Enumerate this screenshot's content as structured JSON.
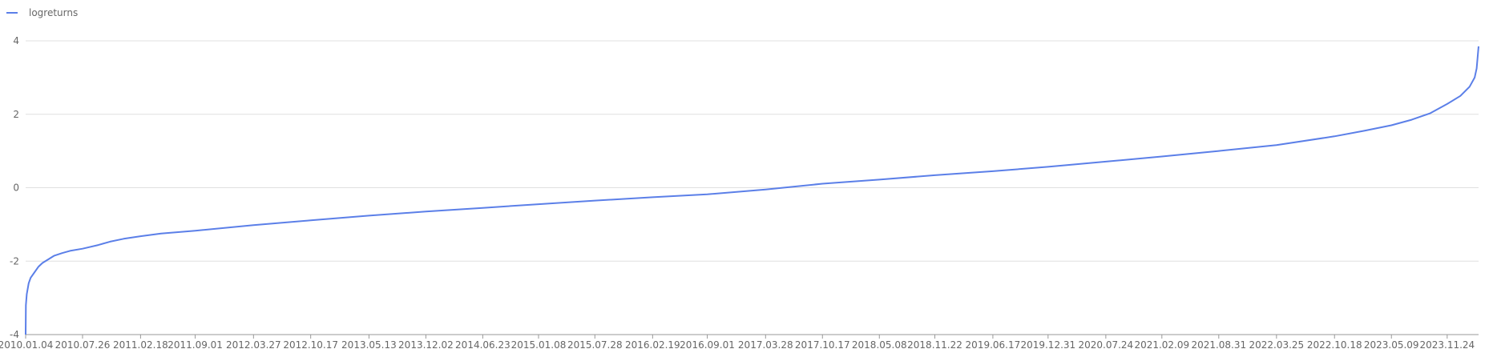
{
  "chart_data": {
    "type": "line",
    "title": "",
    "xlabel": "",
    "ylabel": "",
    "legend": {
      "position": "top-left",
      "entries": [
        "logreturns"
      ]
    },
    "grid": true,
    "ylim": [
      -4,
      4
    ],
    "yticks": [
      "4",
      "2",
      "0",
      "-2",
      "-4"
    ],
    "xlim": [
      "2010.01.04",
      "2024.03.15"
    ],
    "xticks": [
      "2010.01.04",
      "2010.07.26",
      "2011.02.18",
      "2011.09.01",
      "2012.03.27",
      "2012.10.17",
      "2013.05.13",
      "2013.12.02",
      "2014.06.23",
      "2015.01.08",
      "2015.07.28",
      "2016.02.19",
      "2016.09.01",
      "2017.03.28",
      "2017.10.17",
      "2018.05.08",
      "2018.11.22",
      "2019.06.17",
      "2019.12.31",
      "2020.07.24",
      "2021.02.09",
      "2021.08.31",
      "2022.03.25",
      "2022.10.18",
      "2023.05.09",
      "2023.11.24"
    ],
    "series_color": "#5b7fe8",
    "series": [
      {
        "name": "logreturns",
        "x": [
          "2010.01.04",
          "2010.01.05",
          "2010.01.08",
          "2010.01.15",
          "2010.01.22",
          "2010.02.05",
          "2010.02.19",
          "2010.03.05",
          "2010.03.26",
          "2010.04.16",
          "2010.05.14",
          "2010.06.11",
          "2010.07.26",
          "2010.09.20",
          "2010.11.01",
          "2010.12.20",
          "2011.02.18",
          "2011.05.02",
          "2011.09.01",
          "2012.03.27",
          "2012.10.17",
          "2013.05.13",
          "2013.12.02",
          "2014.06.23",
          "2015.01.08",
          "2015.07.28",
          "2016.02.19",
          "2016.09.01",
          "2017.03.28",
          "2017.10.17",
          "2018.05.08",
          "2018.11.22",
          "2019.06.17",
          "2019.12.31",
          "2020.07.24",
          "2021.02.09",
          "2021.08.31",
          "2022.03.25",
          "2022.10.18",
          "2023.02.01",
          "2023.05.09",
          "2023.07.20",
          "2023.09.25",
          "2023.11.24",
          "2024.01.10",
          "2024.02.12",
          "2024.03.01",
          "2024.03.08",
          "2024.03.15"
        ],
        "y": [
          -4.0,
          -3.2,
          -2.9,
          -2.6,
          -2.45,
          -2.3,
          -2.15,
          -2.05,
          -1.95,
          -1.85,
          -1.78,
          -1.72,
          -1.66,
          -1.56,
          -1.47,
          -1.39,
          -1.32,
          -1.25,
          -1.17,
          -1.02,
          -0.89,
          -0.76,
          -0.65,
          -0.55,
          -0.45,
          -0.35,
          -0.26,
          -0.18,
          -0.05,
          0.11,
          0.22,
          0.34,
          0.45,
          0.57,
          0.71,
          0.85,
          1.0,
          1.16,
          1.4,
          1.55,
          1.7,
          1.85,
          2.03,
          2.28,
          2.5,
          2.75,
          3.0,
          3.25,
          3.85
        ]
      }
    ]
  }
}
